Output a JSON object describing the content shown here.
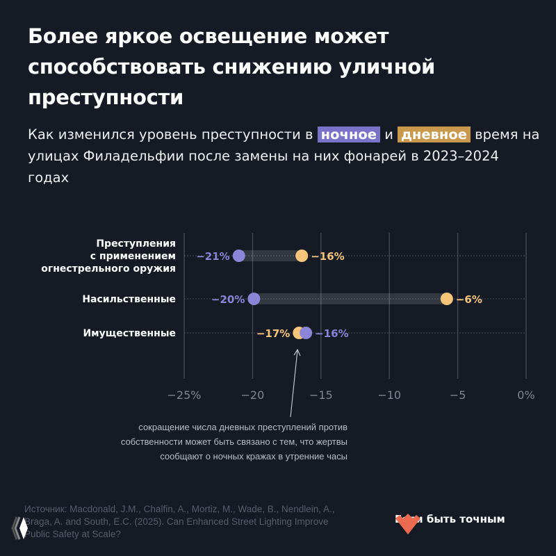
{
  "title": "Более яркое освещение может способствовать снижению уличной преступности",
  "subtitle": {
    "before": "Как изменился уровень преступности в ",
    "night": "ночное",
    "middle": " и ",
    "day": "дневное",
    "after": " время на улицах Филадельфии после замены на них фонарей в 2023–2024 годах"
  },
  "colors": {
    "background": "#151a24",
    "night": "#8b84d7",
    "day": "#f7c57a",
    "night_highlight": "#7a73c9",
    "day_highlight": "#c99a4e"
  },
  "chart_data": {
    "type": "dumbbell",
    "xlim": [
      -25,
      0
    ],
    "xticks": [
      -25,
      -20,
      -15,
      -10,
      -5,
      0
    ],
    "xtick_labels": [
      "−25%",
      "−20",
      "−15",
      "−10",
      "−5",
      "0%"
    ],
    "grid": true,
    "categories": [
      {
        "label_lines": [
          "Преступления",
          "с применением",
          "огнестрельного оружия"
        ],
        "night": -21,
        "day": -16.4,
        "night_label": "−21%",
        "day_label": "−16%"
      },
      {
        "label_lines": [
          "Насильственные"
        ],
        "night": -19.9,
        "day": -5.8,
        "night_label": "−20%",
        "day_label": "−6%"
      },
      {
        "label_lines": [
          "Имущественные"
        ],
        "night": -16.1,
        "day": -16.6,
        "night_label": "−16%",
        "day_label": "−17%"
      }
    ],
    "series": [
      {
        "key": "night"
      },
      {
        "key": "day"
      }
    ],
    "annotation": [
      "сокращение числа дневных преступлений против",
      "собственности может быть связано с тем, что жертвы",
      "сообщают о ночных кражах в утренние часы"
    ]
  },
  "source": "Источник: Macdonald, J.M., Chalfin, A., Mortiz, M., Wade, B., Nendlein, A., Braga, A. and South, E.C. (2025). Can Enhanced Street Lighting Improve Public Safety at Scale?",
  "brand": {
    "name": "Если быть точным",
    "icon": "heart-logo-icon"
  }
}
